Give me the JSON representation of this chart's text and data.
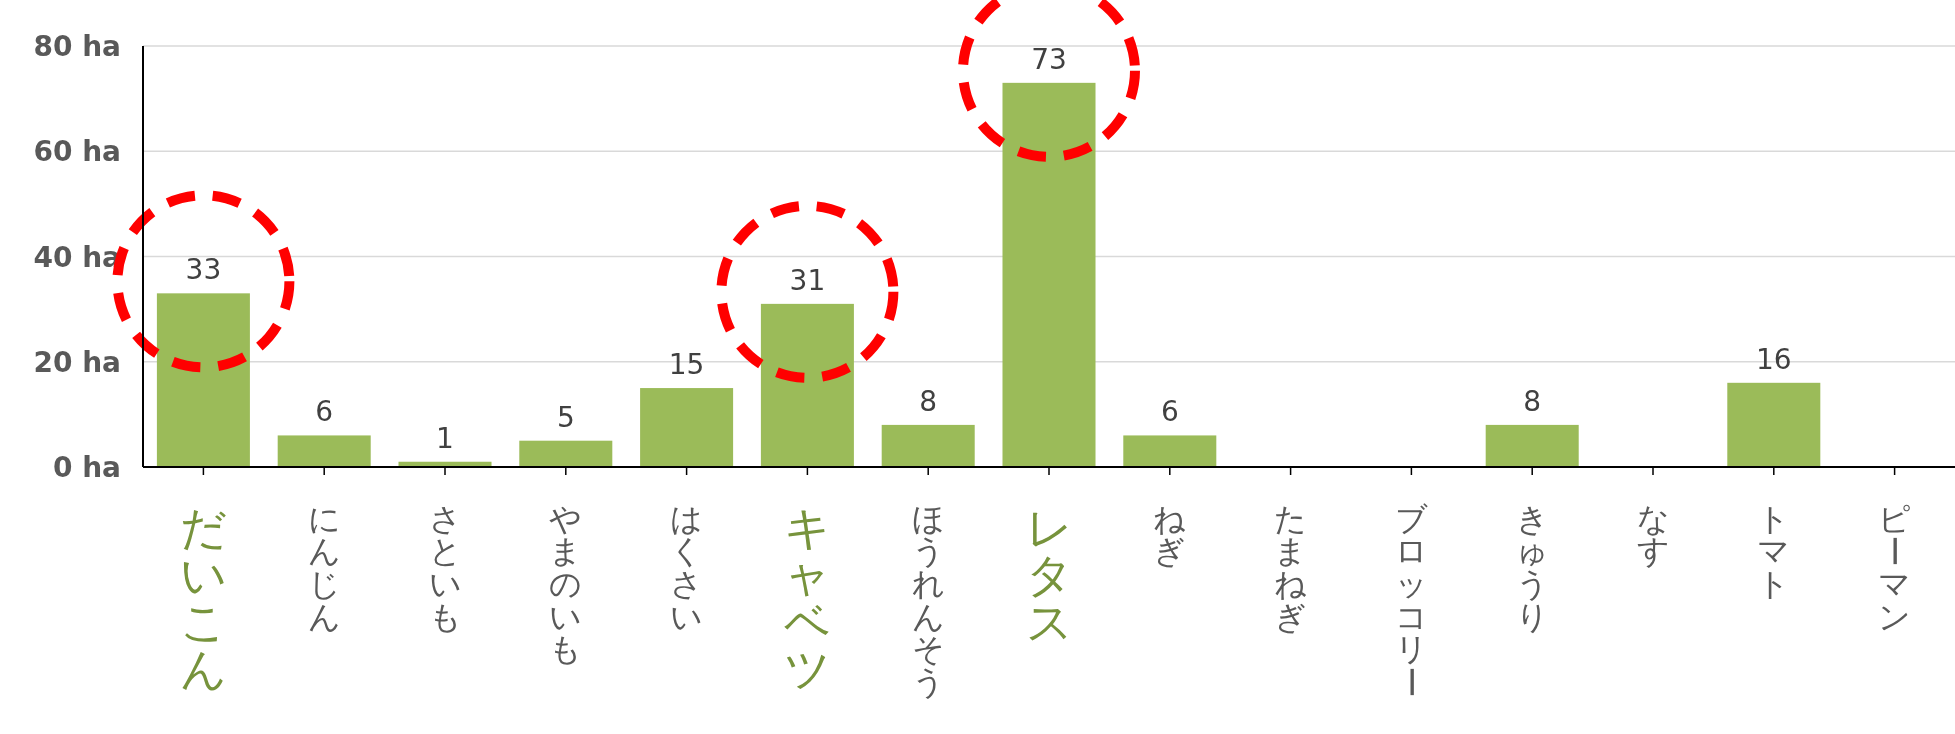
{
  "chart_data": {
    "type": "bar",
    "categories": [
      "だいこん",
      "にんじん",
      "さといも",
      "やまのいも",
      "はくさい",
      "キャベツ",
      "ほうれんそう",
      "レタス",
      "ねぎ",
      "たまねぎ",
      "ブロッコリー",
      "きゅうり",
      "なす",
      "トマト",
      "ピーマン"
    ],
    "values": [
      33,
      6,
      1,
      5,
      15,
      31,
      8,
      73,
      6,
      0,
      0,
      8,
      0,
      16,
      0
    ],
    "value_labels": [
      "33",
      "6",
      "1",
      "5",
      "15",
      "31",
      "8",
      "73",
      "6",
      null,
      null,
      "8",
      null,
      "16",
      null
    ],
    "color": "#9bbb59",
    "ylim": [
      0,
      80
    ],
    "yticks": [
      {
        "value": 0,
        "label": "0 ha"
      },
      {
        "value": 20,
        "label": "20 ha"
      },
      {
        "value": 40,
        "label": "40 ha"
      },
      {
        "value": 60,
        "label": "60 ha"
      },
      {
        "value": 80,
        "label": "80 ha"
      }
    ],
    "grid": "y"
  }
}
